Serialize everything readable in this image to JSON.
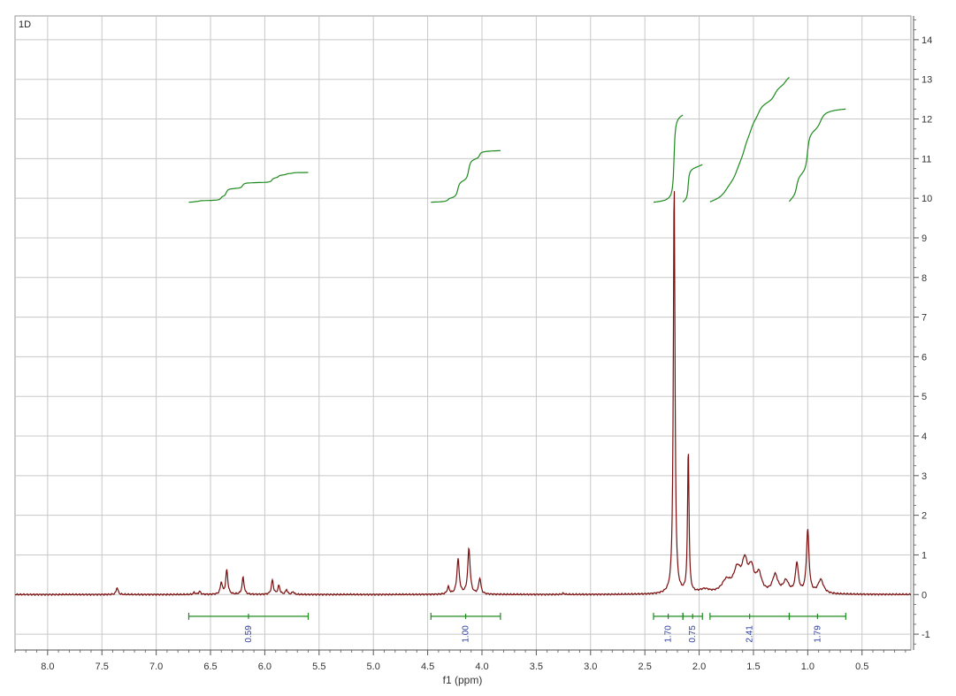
{
  "panel_label": "1D",
  "chart_data": {
    "type": "line",
    "title": "",
    "xlabel": "f1 (ppm)",
    "ylabel": "",
    "x_reversed": true,
    "xlim": [
      8.3,
      0.05
    ],
    "ylim": [
      -1.4,
      14.6
    ],
    "x_ticks": [
      "8.0",
      "7.5",
      "7.0",
      "6.5",
      "6.0",
      "5.5",
      "5.0",
      "4.5",
      "4.0",
      "3.5",
      "3.0",
      "2.5",
      "2.0",
      "1.5",
      "1.0",
      "0.5"
    ],
    "y_ticks": [
      "-1",
      "0",
      "1",
      "2",
      "3",
      "4",
      "5",
      "6",
      "7",
      "8",
      "9",
      "10",
      "11",
      "12",
      "13",
      "14"
    ],
    "grid": true,
    "y_axis_side": "right",
    "colors": {
      "spectrum": "#7a0f0f",
      "integral": "#1e8a1e",
      "integral_label": "#2a3a9a",
      "grid": "#c8c8c8"
    },
    "peaks": [
      {
        "ppm": 7.36,
        "height": 0.18,
        "width": 0.01
      },
      {
        "ppm": 6.65,
        "height": 0.05,
        "width": 0.01
      },
      {
        "ppm": 6.6,
        "height": 0.08,
        "width": 0.01
      },
      {
        "ppm": 6.4,
        "height": 0.3,
        "width": 0.011
      },
      {
        "ppm": 6.35,
        "height": 0.62,
        "width": 0.011
      },
      {
        "ppm": 6.2,
        "height": 0.43,
        "width": 0.011
      },
      {
        "ppm": 5.93,
        "height": 0.36,
        "width": 0.011
      },
      {
        "ppm": 5.87,
        "height": 0.22,
        "width": 0.011
      },
      {
        "ppm": 5.8,
        "height": 0.12,
        "width": 0.01
      },
      {
        "ppm": 5.74,
        "height": 0.07,
        "width": 0.01
      },
      {
        "ppm": 4.31,
        "height": 0.18,
        "width": 0.012
      },
      {
        "ppm": 4.22,
        "height": 0.88,
        "width": 0.013
      },
      {
        "ppm": 4.12,
        "height": 1.15,
        "width": 0.013
      },
      {
        "ppm": 4.02,
        "height": 0.4,
        "width": 0.012
      },
      {
        "ppm": 3.25,
        "height": 0.03,
        "width": 0.01
      },
      {
        "ppm": 2.23,
        "height": 10.4,
        "width": 0.009
      },
      {
        "ppm": 2.1,
        "height": 3.65,
        "width": 0.008
      },
      {
        "ppm": 1.95,
        "height": 0.1,
        "width": 0.06
      },
      {
        "ppm": 1.75,
        "height": 0.3,
        "width": 0.05
      },
      {
        "ppm": 1.65,
        "height": 0.55,
        "width": 0.04
      },
      {
        "ppm": 1.58,
        "height": 0.7,
        "width": 0.03
      },
      {
        "ppm": 1.52,
        "height": 0.55,
        "width": 0.03
      },
      {
        "ppm": 1.45,
        "height": 0.45,
        "width": 0.03
      },
      {
        "ppm": 1.3,
        "height": 0.45,
        "width": 0.03
      },
      {
        "ppm": 1.2,
        "height": 0.3,
        "width": 0.03
      },
      {
        "ppm": 1.1,
        "height": 0.75,
        "width": 0.016
      },
      {
        "ppm": 1.0,
        "height": 1.6,
        "width": 0.014
      },
      {
        "ppm": 0.88,
        "height": 0.35,
        "width": 0.03
      }
    ],
    "integrals": [
      {
        "from": 6.7,
        "to": 5.6,
        "value": "0.59",
        "curve_start": 9.9,
        "curve_end": 10.65
      },
      {
        "from": 4.47,
        "to": 3.83,
        "value": "1.00",
        "curve_start": 9.9,
        "curve_end": 11.2
      },
      {
        "from": 2.42,
        "to": 2.15,
        "value": "1.70",
        "curve_start": 9.9,
        "curve_end": 12.1
      },
      {
        "from": 2.15,
        "to": 1.97,
        "value": "0.75",
        "curve_start": 9.9,
        "curve_end": 10.85
      },
      {
        "from": 1.9,
        "to": 1.17,
        "value": "2.41",
        "curve_start": 9.9,
        "curve_end": 13.05
      },
      {
        "from": 1.17,
        "to": 0.65,
        "value": "1.79",
        "curve_start": 9.9,
        "curve_end": 12.25
      }
    ]
  }
}
